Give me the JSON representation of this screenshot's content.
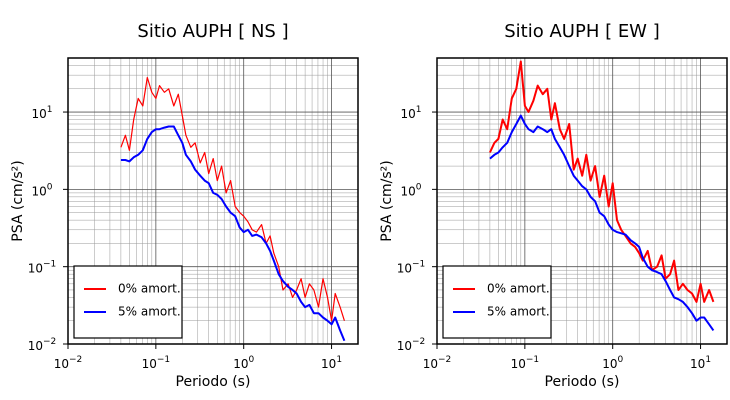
{
  "chart_data": [
    {
      "type": "line",
      "title": "Sitio AUPH [ NS ]",
      "xlabel": "Periodo (s)",
      "ylabel": "PSA (cm/s²)",
      "log_x": true,
      "log_y": true,
      "grid": true,
      "legend": "lower left",
      "xlim": [
        0.01,
        20
      ],
      "ylim": [
        0.01,
        50
      ],
      "xticks": [
        {
          "value": 0.01,
          "label": "10",
          "exponent": "−2"
        },
        {
          "value": 0.1,
          "label": "10",
          "exponent": "−1"
        },
        {
          "value": 1,
          "label": "10",
          "exponent": "0"
        },
        {
          "value": 10,
          "label": "10",
          "exponent": "1"
        }
      ],
      "yticks": [
        {
          "value": 0.01,
          "label": "10",
          "exponent": "−2"
        },
        {
          "value": 0.1,
          "label": "10",
          "exponent": "−1"
        },
        {
          "value": 1,
          "label": "10",
          "exponent": "0"
        },
        {
          "value": 10,
          "label": "10",
          "exponent": "1"
        }
      ],
      "x": [
        0.04,
        0.045,
        0.05,
        0.056,
        0.063,
        0.071,
        0.08,
        0.09,
        0.1,
        0.11,
        0.125,
        0.14,
        0.16,
        0.18,
        0.2,
        0.22,
        0.25,
        0.28,
        0.32,
        0.36,
        0.4,
        0.45,
        0.5,
        0.56,
        0.63,
        0.71,
        0.8,
        0.9,
        1,
        1.12,
        1.25,
        1.4,
        1.6,
        1.8,
        2,
        2.2,
        2.5,
        2.8,
        3.2,
        3.6,
        4,
        4.5,
        5,
        5.6,
        6.3,
        7.1,
        8,
        9,
        10,
        11,
        12.5,
        14
      ],
      "series": [
        {
          "name": "0% amort.",
          "color": "#ff0000",
          "values": [
            3.5,
            5,
            3.2,
            8,
            15,
            12,
            28,
            18,
            15,
            22,
            18,
            20,
            12,
            17,
            9,
            5,
            3.5,
            4,
            2.2,
            3,
            1.6,
            2.5,
            1.3,
            2,
            0.9,
            1.3,
            0.6,
            0.5,
            0.45,
            0.38,
            0.3,
            0.28,
            0.35,
            0.2,
            0.25,
            0.15,
            0.1,
            0.05,
            0.06,
            0.04,
            0.05,
            0.07,
            0.04,
            0.06,
            0.05,
            0.03,
            0.07,
            0.04,
            0.02,
            0.045,
            0.03,
            0.02
          ]
        },
        {
          "name": "5% amort.",
          "color": "#0000ff",
          "values": [
            2.4,
            2.4,
            2.3,
            2.6,
            2.8,
            3.2,
            4.5,
            5.5,
            6,
            6,
            6.3,
            6.5,
            6.5,
            5,
            4,
            2.8,
            2.3,
            1.8,
            1.5,
            1.3,
            1.2,
            0.9,
            0.85,
            0.75,
            0.6,
            0.5,
            0.45,
            0.32,
            0.28,
            0.3,
            0.25,
            0.26,
            0.24,
            0.2,
            0.16,
            0.12,
            0.08,
            0.065,
            0.055,
            0.05,
            0.045,
            0.035,
            0.03,
            0.032,
            0.025,
            0.025,
            0.022,
            0.02,
            0.018,
            0.022,
            0.015,
            0.011
          ]
        }
      ]
    },
    {
      "type": "line",
      "title": "Sitio AUPH [ EW ]",
      "xlabel": "Periodo (s)",
      "ylabel": "PSA (cm/s²)",
      "log_x": true,
      "log_y": true,
      "grid": true,
      "legend": "lower left",
      "xlim": [
        0.01,
        20
      ],
      "ylim": [
        0.01,
        50
      ],
      "xticks": [
        {
          "value": 0.01,
          "label": "10",
          "exponent": "−2"
        },
        {
          "value": 0.1,
          "label": "10",
          "exponent": "−1"
        },
        {
          "value": 1,
          "label": "10",
          "exponent": "0"
        },
        {
          "value": 10,
          "label": "10",
          "exponent": "1"
        }
      ],
      "yticks": [
        {
          "value": 0.01,
          "label": "10",
          "exponent": "−2"
        },
        {
          "value": 0.1,
          "label": "10",
          "exponent": "−1"
        },
        {
          "value": 1,
          "label": "10",
          "exponent": "0"
        },
        {
          "value": 10,
          "label": "10",
          "exponent": "1"
        }
      ],
      "x": [
        0.04,
        0.045,
        0.05,
        0.056,
        0.063,
        0.071,
        0.08,
        0.09,
        0.1,
        0.11,
        0.125,
        0.14,
        0.16,
        0.18,
        0.2,
        0.22,
        0.25,
        0.28,
        0.32,
        0.36,
        0.4,
        0.45,
        0.5,
        0.56,
        0.63,
        0.71,
        0.8,
        0.9,
        1,
        1.12,
        1.25,
        1.4,
        1.6,
        1.8,
        2,
        2.2,
        2.5,
        2.8,
        3.2,
        3.6,
        4,
        4.5,
        5,
        5.6,
        6.3,
        7.1,
        8,
        9,
        10,
        11,
        12.5,
        14
      ],
      "series": [
        {
          "name": "0% amort.",
          "color": "#ff0000",
          "values": [
            3,
            4,
            4.5,
            8,
            6,
            15,
            20,
            45,
            12,
            10,
            14,
            22,
            17,
            20,
            8,
            13,
            6,
            4.5,
            7,
            1.8,
            2.5,
            1.5,
            2.8,
            1.3,
            2,
            0.8,
            1.5,
            0.6,
            1.2,
            0.4,
            0.3,
            0.25,
            0.2,
            0.18,
            0.15,
            0.12,
            0.16,
            0.09,
            0.1,
            0.14,
            0.07,
            0.08,
            0.12,
            0.05,
            0.06,
            0.05,
            0.045,
            0.035,
            0.06,
            0.035,
            0.05,
            0.035
          ]
        },
        {
          "name": "5% amort.",
          "color": "#0000ff",
          "values": [
            2.5,
            2.8,
            3,
            3.5,
            4,
            5.5,
            7,
            9,
            7,
            6,
            5.5,
            6.5,
            6,
            5.5,
            6,
            4.5,
            3.5,
            2.8,
            2,
            1.5,
            1.3,
            1.1,
            1.0,
            0.8,
            0.7,
            0.5,
            0.45,
            0.35,
            0.3,
            0.28,
            0.27,
            0.26,
            0.22,
            0.2,
            0.18,
            0.13,
            0.1,
            0.09,
            0.085,
            0.08,
            0.065,
            0.05,
            0.04,
            0.038,
            0.035,
            0.03,
            0.025,
            0.02,
            0.022,
            0.022,
            0.018,
            0.015
          ]
        }
      ]
    }
  ]
}
